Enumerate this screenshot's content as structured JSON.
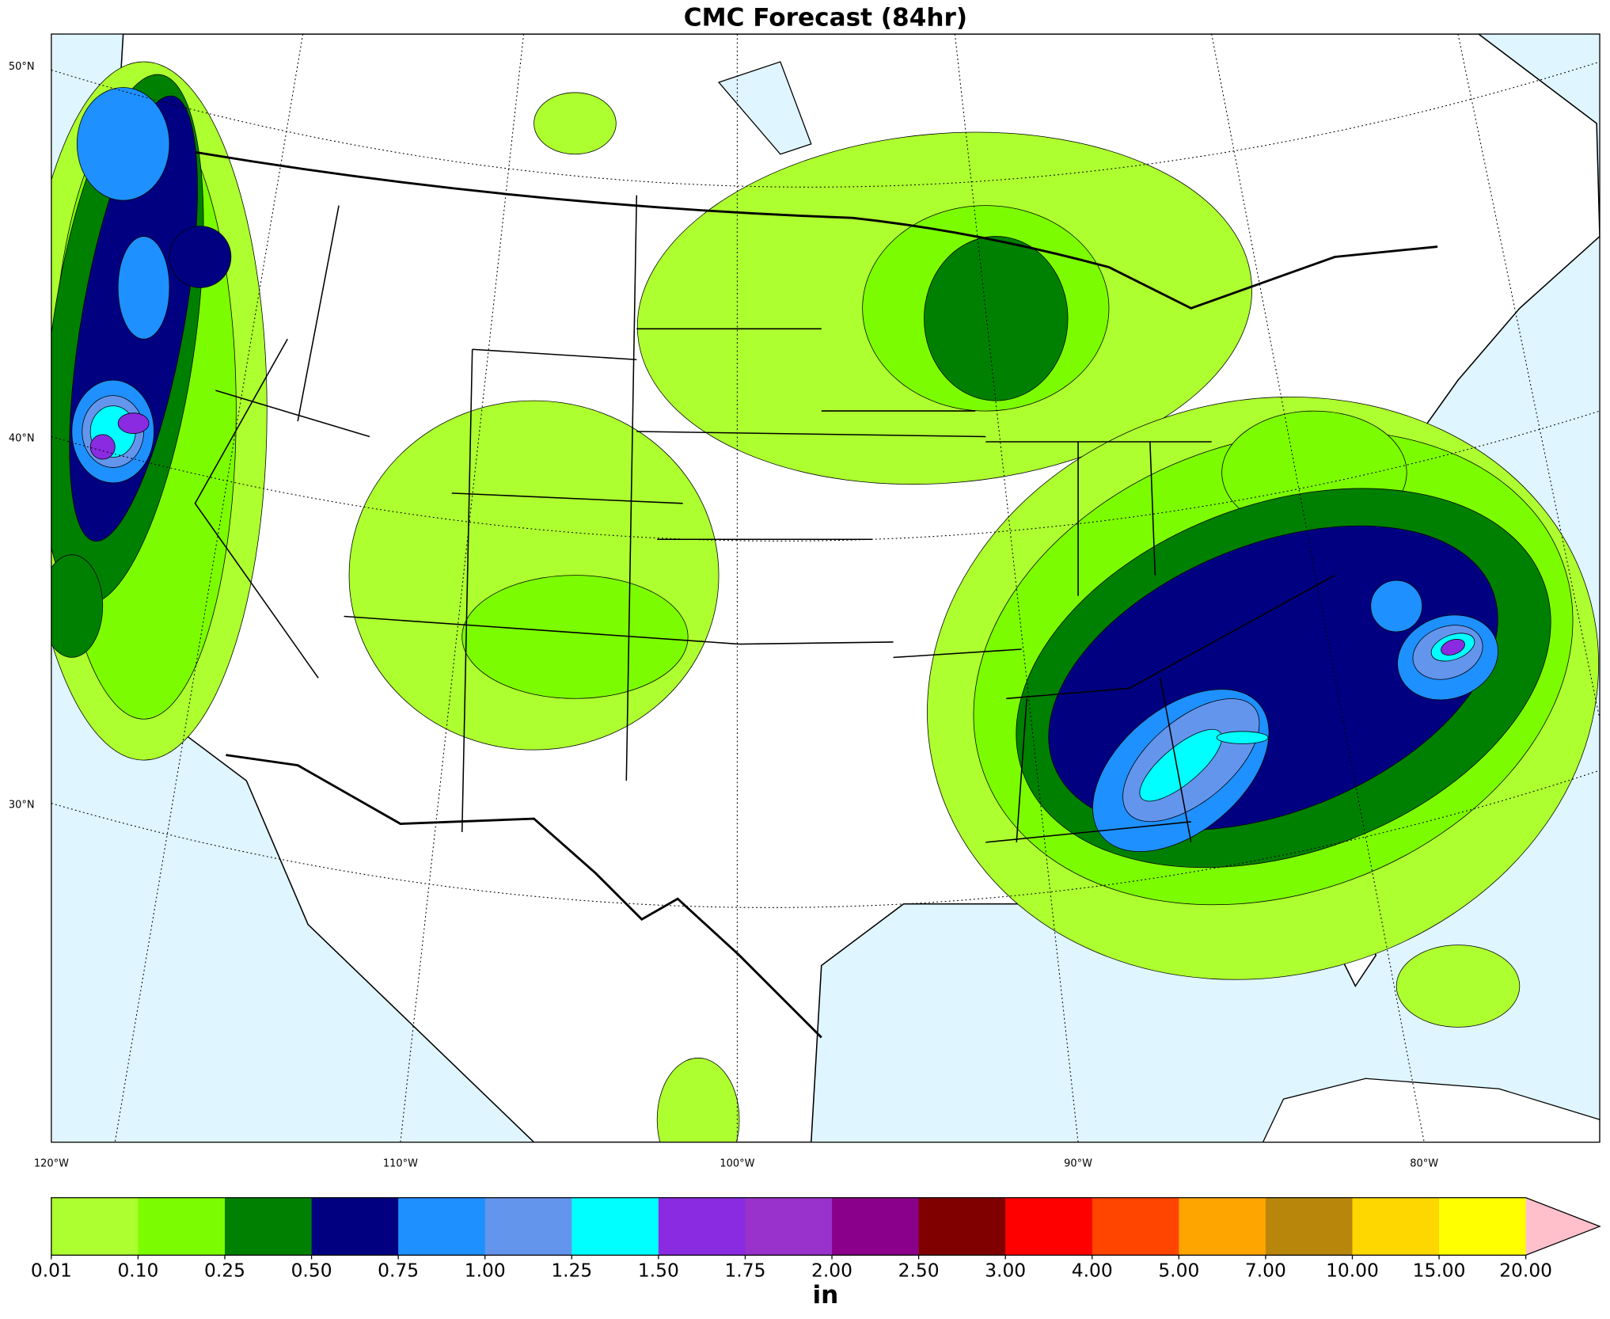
{
  "title": "CMC Forecast (84hr)",
  "map": {
    "lat_labels": [
      "50°N",
      "40°N",
      "30°N"
    ],
    "lon_labels": [
      "120°W",
      "110°W",
      "100°W",
      "90°W",
      "80°W"
    ]
  },
  "colorbar": {
    "levels": [
      {
        "value": 0.01,
        "label": "0.01"
      },
      {
        "value": 0.1,
        "label": "0.10"
      },
      {
        "value": 0.25,
        "label": "0.25"
      },
      {
        "value": 0.5,
        "label": "0.50"
      },
      {
        "value": 0.75,
        "label": "0.75"
      },
      {
        "value": 1,
        "label": "1.00"
      },
      {
        "value": 1.25,
        "label": "1.25"
      },
      {
        "value": 1.5,
        "label": "1.50"
      },
      {
        "value": 1.75,
        "label": "1.75"
      },
      {
        "value": 2,
        "label": "2.00"
      },
      {
        "value": 2.5,
        "label": "2.50"
      },
      {
        "value": 3,
        "label": "3.00"
      },
      {
        "value": 4,
        "label": "4.00"
      },
      {
        "value": 5,
        "label": "5.00"
      },
      {
        "value": 7,
        "label": "7.00"
      },
      {
        "value": 10,
        "label": "10.00"
      },
      {
        "value": 15,
        "label": "15.00"
      },
      {
        "value": 20,
        "label": "20.00"
      }
    ],
    "colors": [
      "#adff2f",
      "#7cfc00",
      "#008000",
      "#000080",
      "#1e90ff",
      "#6495ed",
      "#00ffff",
      "#8a2be2",
      "#9932cc",
      "#8b008b",
      "#800000",
      "#ff0000",
      "#ff4500",
      "#ffa500",
      "#b8860b",
      "#ffd700",
      "#ffff00"
    ],
    "extend_color": "#ffc0cb",
    "unit": "in"
  }
}
